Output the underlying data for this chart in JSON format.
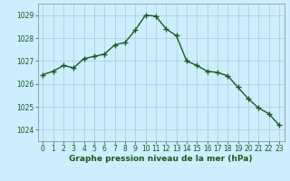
{
  "x": [
    0,
    1,
    2,
    3,
    4,
    5,
    6,
    7,
    8,
    9,
    10,
    11,
    12,
    13,
    14,
    15,
    16,
    17,
    18,
    19,
    20,
    21,
    22,
    23
  ],
  "y": [
    1026.4,
    1026.55,
    1026.8,
    1026.7,
    1027.1,
    1027.2,
    1027.3,
    1027.7,
    1027.8,
    1028.35,
    1029.0,
    1028.95,
    1028.4,
    1028.1,
    1027.0,
    1026.8,
    1026.55,
    1026.5,
    1026.35,
    1025.85,
    1025.35,
    1024.95,
    1024.7,
    1024.2
  ],
  "line_color": "#1a5c1a",
  "marker": "+",
  "marker_size": 4,
  "line_width": 1.0,
  "bg_color": "#cceeff",
  "grid_color": "#aacccc",
  "xlabel": "Graphe pression niveau de la mer (hPa)",
  "xlabel_color": "#1a5c1a",
  "xlabel_fontsize": 6.5,
  "tick_color": "#1a5c1a",
  "tick_fontsize": 5.5,
  "ylim": [
    1023.5,
    1029.5
  ],
  "yticks": [
    1024,
    1025,
    1026,
    1027,
    1028,
    1029
  ],
  "xlim": [
    -0.5,
    23.5
  ],
  "xticks": [
    0,
    1,
    2,
    3,
    4,
    5,
    6,
    7,
    8,
    9,
    10,
    11,
    12,
    13,
    14,
    15,
    16,
    17,
    18,
    19,
    20,
    21,
    22,
    23
  ]
}
